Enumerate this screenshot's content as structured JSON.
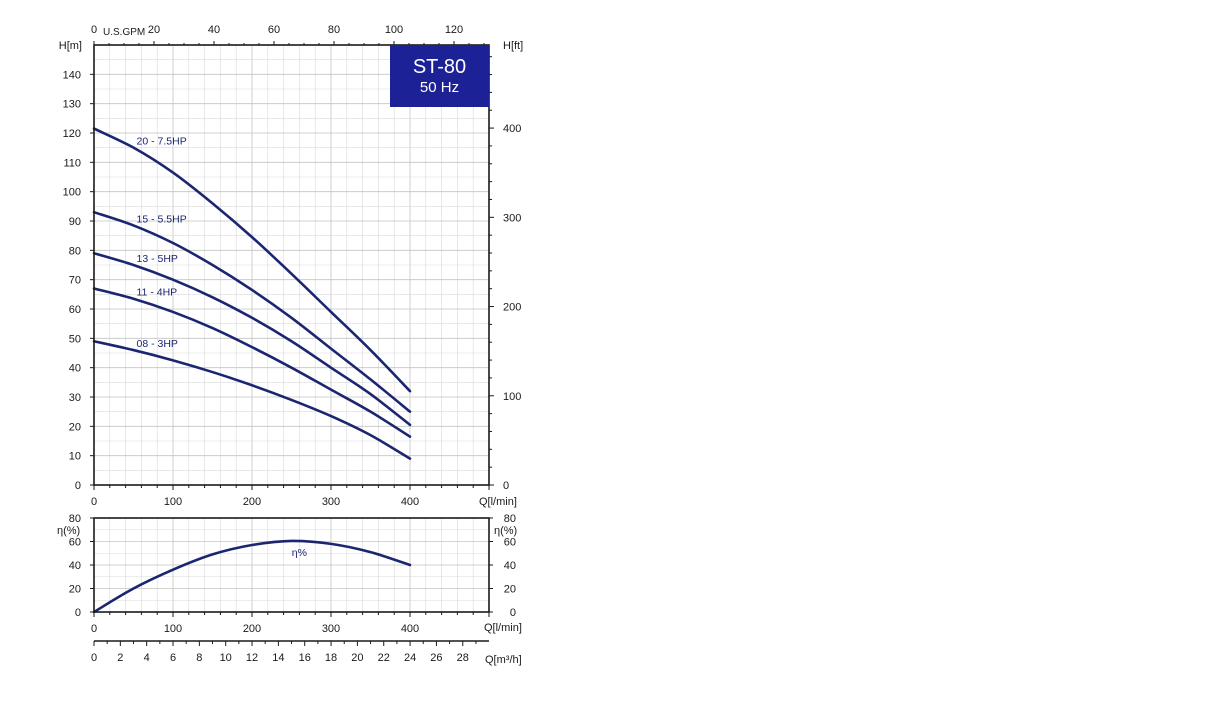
{
  "badge": {
    "model": "ST-80",
    "frequency": "50 Hz"
  },
  "chart_data": [
    {
      "type": "line",
      "panel": "head",
      "xlabel": "Q[l/min]",
      "ylabel_left": "H[m]",
      "ylabel_right": "H[ft]",
      "xlabel_top": "U.S.GPM",
      "xlim": [
        0,
        500
      ],
      "ylim": [
        0,
        150
      ],
      "x_ticks": [
        0,
        100,
        200,
        300,
        400
      ],
      "y_ticks": [
        0,
        10,
        20,
        30,
        40,
        50,
        60,
        70,
        80,
        90,
        100,
        110,
        120,
        130,
        140
      ],
      "right_ticks_ft": [
        0,
        100,
        200,
        300,
        400
      ],
      "top_ticks_gpm": [
        0,
        20,
        40,
        60,
        80,
        100,
        120
      ],
      "grid": true,
      "series": [
        {
          "name": "20 - 7.5HP",
          "x": [
            0,
            50,
            100,
            150,
            200,
            250,
            300,
            350,
            400
          ],
          "y": [
            121.5,
            115,
            106.5,
            96,
            84.5,
            72,
            59,
            46,
            32
          ]
        },
        {
          "name": "15 - 5.5HP",
          "x": [
            0,
            50,
            100,
            150,
            200,
            250,
            300,
            350,
            400
          ],
          "y": [
            93,
            88.5,
            82.5,
            75,
            66.5,
            57,
            46.5,
            36,
            25
          ]
        },
        {
          "name": "13 - 5HP",
          "x": [
            0,
            50,
            100,
            150,
            200,
            250,
            300,
            350,
            400
          ],
          "y": [
            79,
            75,
            70,
            64,
            57,
            49,
            40,
            31,
            20.5
          ]
        },
        {
          "name": "11 - 4HP",
          "x": [
            0,
            50,
            100,
            150,
            200,
            250,
            300,
            350,
            400
          ],
          "y": [
            67,
            63.5,
            59,
            53.5,
            47,
            40,
            32.5,
            25,
            16.5
          ]
        },
        {
          "name": "08 - 3HP",
          "x": [
            0,
            50,
            100,
            150,
            200,
            250,
            300,
            350,
            400
          ],
          "y": [
            49,
            46,
            42.5,
            38.5,
            34,
            29,
            23.5,
            17,
            9
          ]
        }
      ]
    },
    {
      "type": "line",
      "panel": "efficiency",
      "xlabel": "Q[l/min]",
      "ylabel_left": "η(%)",
      "ylabel_right": "η(%)",
      "xlim": [
        0,
        500
      ],
      "ylim": [
        0,
        80
      ],
      "x_ticks": [
        0,
        100,
        200,
        300,
        400
      ],
      "y_ticks": [
        0,
        20,
        40,
        60,
        80
      ],
      "grid": true,
      "series": [
        {
          "name": "η%",
          "x": [
            0,
            50,
            100,
            150,
            200,
            250,
            300,
            350,
            400
          ],
          "y": [
            0,
            20,
            36,
            49,
            57,
            60.5,
            58,
            51,
            40
          ]
        }
      ]
    },
    {
      "type": "axis",
      "panel": "flow-m3h",
      "xlabel": "Q[m³/h]",
      "xlim": [
        0,
        30
      ],
      "x_ticks": [
        0,
        2,
        4,
        6,
        8,
        10,
        12,
        14,
        16,
        18,
        20,
        22,
        24,
        26,
        28
      ]
    }
  ]
}
